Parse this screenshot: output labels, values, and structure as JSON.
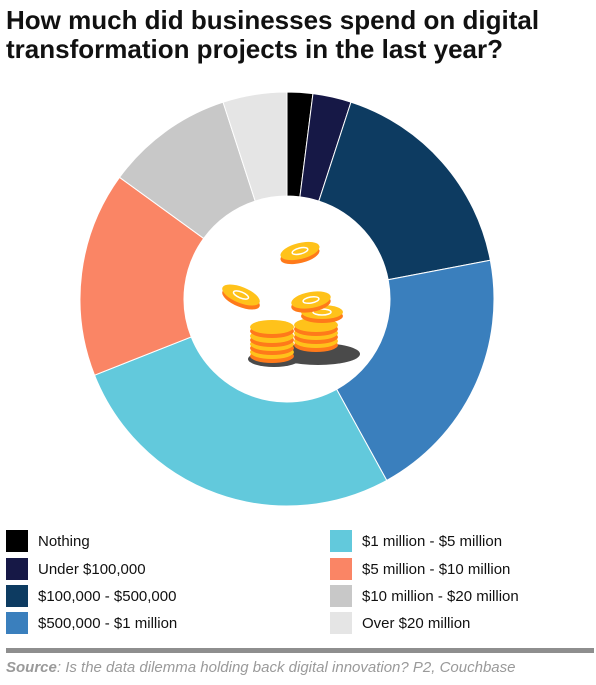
{
  "title": "How much did businesses spend on digital transformation projects in the last year?",
  "chart_data": {
    "type": "pie",
    "variant": "donut",
    "categories": [
      "Nothing",
      "Under $100,000",
      "$100,000 - $500,000",
      "$500,000 - $1 million",
      "$1 million - $5 million",
      "$5 million - $10 million",
      "$10 million - $20 million",
      "Over $20 million"
    ],
    "values": [
      2,
      3,
      17,
      20,
      27,
      16,
      10,
      5
    ],
    "colors": [
      "#000000",
      "#161846",
      "#0d3b61",
      "#3a7fbd",
      "#62c9dc",
      "#fa8565",
      "#c8c8c8",
      "#e5e5e5"
    ],
    "legend_position": "bottom",
    "center_image": "coins-illustration"
  },
  "source": {
    "label": "Source",
    "text": ": Is the data dilemma holding back digital innovation? P2, Couchbase"
  }
}
